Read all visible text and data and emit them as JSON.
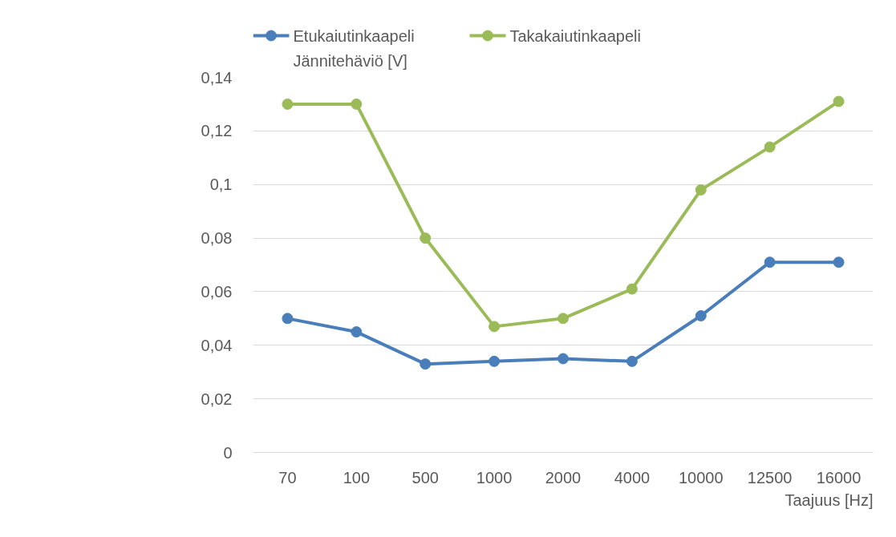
{
  "chart_data": {
    "type": "line",
    "xlabel": "Taajuus [Hz]",
    "ylabel": "Jännitehäviö [V]",
    "categories": [
      "70",
      "100",
      "500",
      "1000",
      "2000",
      "4000",
      "10000",
      "12500",
      "16000"
    ],
    "series": [
      {
        "name": "Etukaiutinkaapeli",
        "color": "#4a7ebb",
        "values": [
          0.05,
          0.045,
          0.033,
          0.034,
          0.035,
          0.034,
          0.051,
          0.071,
          0.071
        ]
      },
      {
        "name": "Takakaiutinkaapeli",
        "color": "#9bbb59",
        "values": [
          0.13,
          0.13,
          0.08,
          0.047,
          0.05,
          0.061,
          0.098,
          0.114,
          0.131
        ]
      }
    ],
    "ylim": [
      0,
      0.14
    ],
    "yticks": [
      0,
      {
        "value": 0.02,
        "label": "0,02"
      },
      {
        "value": 0.04,
        "label": "0,04"
      },
      {
        "value": 0.06,
        "label": "0,06"
      },
      {
        "value": 0.08,
        "label": "0,08"
      },
      {
        "value": 0.1,
        "label": "0,1"
      },
      {
        "value": 0.12,
        "label": "0,12"
      },
      {
        "value": 0.14,
        "label": "0,14"
      }
    ],
    "grid": "y",
    "legend": "top",
    "marker": "circle",
    "line_style": "solid"
  }
}
